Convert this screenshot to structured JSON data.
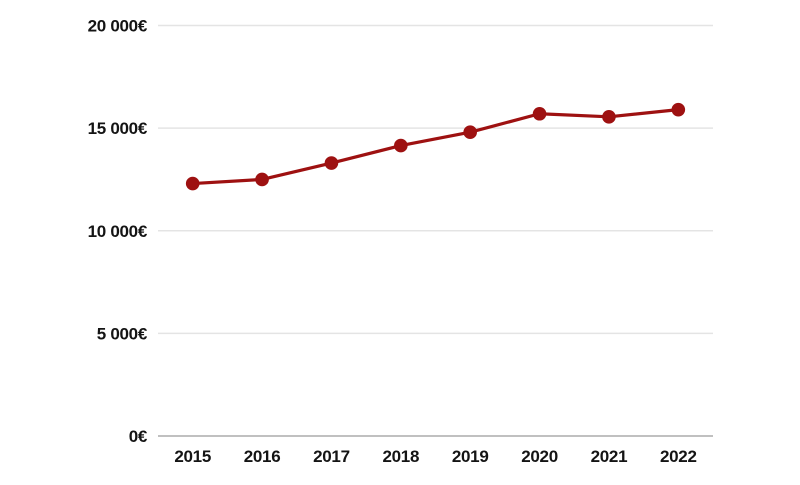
{
  "chart_data": {
    "type": "line",
    "title": "",
    "xlabel": "",
    "ylabel": "",
    "categories": [
      "2015",
      "2016",
      "2017",
      "2018",
      "2019",
      "2020",
      "2021",
      "2022"
    ],
    "series": [
      {
        "name": "value-eur",
        "values": [
          12300,
          12500,
          13300,
          14150,
          14800,
          15700,
          15550,
          15900
        ]
      }
    ],
    "ylim": [
      0,
      20000
    ],
    "yticks": [
      {
        "value": 0,
        "label": "0€"
      },
      {
        "value": 5000,
        "label": "5 000€"
      },
      {
        "value": 10000,
        "label": "10 000€"
      },
      {
        "value": 15000,
        "label": "15 000€"
      },
      {
        "value": 20000,
        "label": "20 000€"
      }
    ],
    "grid": "horizontal",
    "legend": "none",
    "colors": {
      "line": "#9e1111",
      "marker": "#9e1111",
      "grid_line": "#e4e4e4",
      "zero_axis_line": "#ababab",
      "tick_text": "#141414",
      "background": "#ffffff"
    }
  }
}
